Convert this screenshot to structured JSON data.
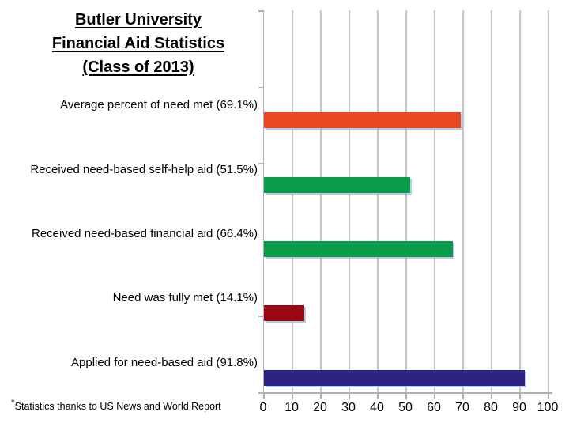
{
  "title": {
    "line1": "Butler University",
    "line2": "Financial Aid Statistics",
    "line3": "(Class of 2013)"
  },
  "footnote": {
    "asterisk": "*",
    "text": "Statistics thanks to US News and World Report"
  },
  "chart_data": {
    "type": "bar",
    "orientation": "horizontal",
    "title": "Butler University Financial Aid Statistics (Class of 2013)",
    "categories": [
      "Average percent of need met (69.1%)",
      "Received need-based self-help aid (51.5%)",
      "Received need-based financial aid (66.4%)",
      "Need was fully met (14.1%)",
      "Applied for need-based aid (91.8%)"
    ],
    "values": [
      69.1,
      51.5,
      66.4,
      14.1,
      91.8
    ],
    "bar_colors": [
      "#e8481d",
      "#0a9b49",
      "#0a9b49",
      "#9b0613",
      "#2b2483"
    ],
    "xlim": [
      0,
      100
    ],
    "x_ticks": [
      0,
      10,
      20,
      30,
      40,
      50,
      60,
      70,
      80,
      90,
      100
    ],
    "grid": "vertical",
    "legend": "none",
    "footnote": "*Statistics thanks to US News and World Report",
    "colors": {
      "grid": "#c6c6c6",
      "axis": "#b0b0b0",
      "text": "#000000"
    }
  }
}
